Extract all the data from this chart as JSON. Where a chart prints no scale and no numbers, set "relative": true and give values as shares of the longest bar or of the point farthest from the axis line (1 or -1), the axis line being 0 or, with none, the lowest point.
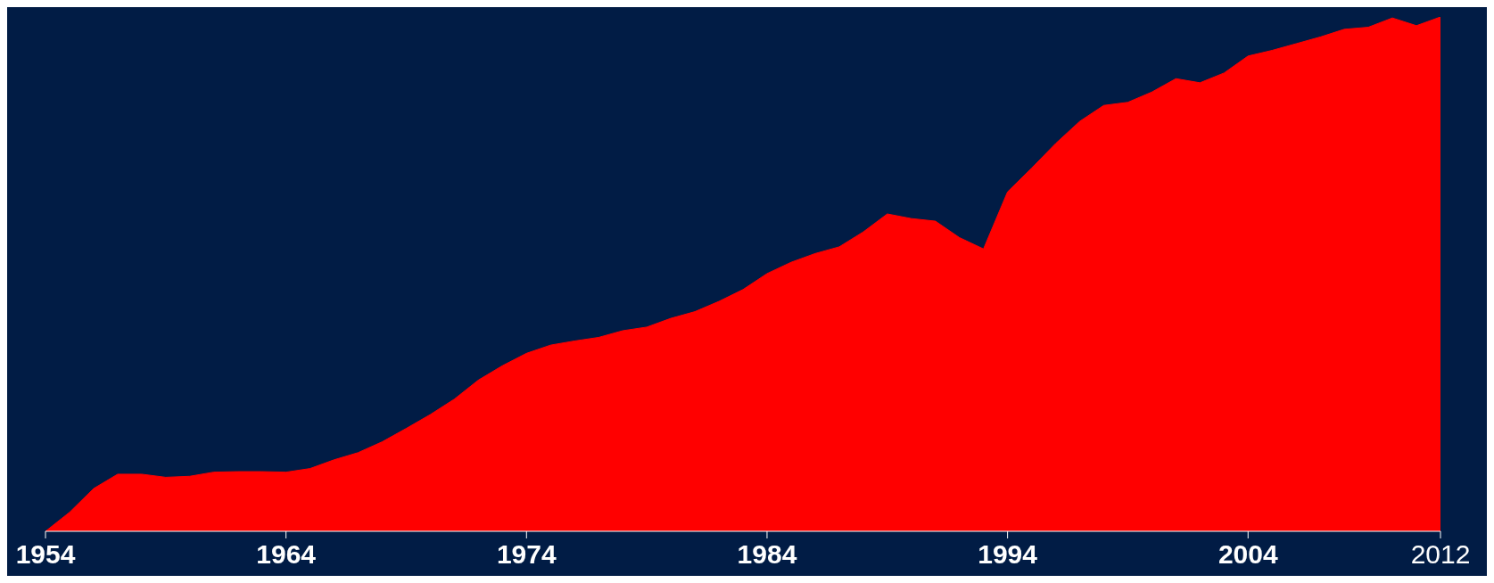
{
  "chart_data": {
    "type": "area",
    "relative": true,
    "color": "#ff0000",
    "x": [
      1954,
      1955,
      1956,
      1957,
      1958,
      1959,
      1960,
      1961,
      1962,
      1963,
      1964,
      1965,
      1966,
      1967,
      1968,
      1969,
      1970,
      1971,
      1972,
      1973,
      1974,
      1975,
      1976,
      1977,
      1978,
      1979,
      1980,
      1981,
      1982,
      1983,
      1984,
      1985,
      1986,
      1987,
      1988,
      1989,
      1990,
      1991,
      1992,
      1993,
      1994,
      1995,
      1996,
      1997,
      1998,
      1999,
      2000,
      2001,
      2002,
      2003,
      2004,
      2005,
      2006,
      2007,
      2008,
      2009,
      2010,
      2011,
      2012
    ],
    "values": [
      0,
      0.037,
      0.083,
      0.111,
      0.111,
      0.105,
      0.107,
      0.115,
      0.116,
      0.116,
      0.115,
      0.122,
      0.139,
      0.153,
      0.174,
      0.2,
      0.227,
      0.257,
      0.294,
      0.322,
      0.346,
      0.362,
      0.37,
      0.377,
      0.39,
      0.397,
      0.414,
      0.427,
      0.447,
      0.47,
      0.501,
      0.523,
      0.54,
      0.553,
      0.582,
      0.617,
      0.608,
      0.603,
      0.571,
      0.549,
      0.66,
      0.706,
      0.754,
      0.797,
      0.828,
      0.834,
      0.854,
      0.88,
      0.872,
      0.891,
      0.924,
      0.935,
      0.948,
      0.961,
      0.976,
      0.98,
      0.998,
      0.983,
      1
    ],
    "xlim": [
      1954,
      2012
    ],
    "xticks": [
      1954,
      1964,
      1974,
      1984,
      1994,
      2004,
      2012
    ],
    "grid": false
  }
}
